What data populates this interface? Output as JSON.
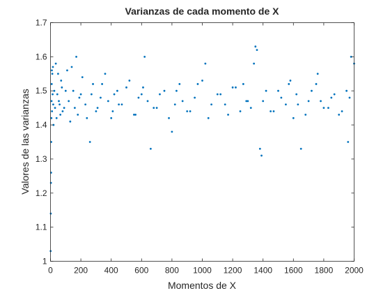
{
  "chart_data": {
    "type": "scatter",
    "title": "Varianzas de cada momento de X",
    "xlabel": "Momentos de X",
    "ylabel": "Valores de las varianzas",
    "xlim": [
      0,
      2000
    ],
    "ylim": [
      1.0,
      1.7
    ],
    "xticks": [
      0,
      200,
      400,
      600,
      800,
      1000,
      1200,
      1400,
      1600,
      1800,
      2000
    ],
    "xtick_labels": [
      "0",
      "200",
      "400",
      "600",
      "800",
      "1000",
      "1200",
      "1400",
      "1600",
      "1800",
      "2000"
    ],
    "yticks": [
      1.0,
      1.1,
      1.2,
      1.3,
      1.4,
      1.5,
      1.6,
      1.7
    ],
    "ytick_labels": [
      "1",
      "1.1",
      "1.2",
      "1.3",
      "1.4",
      "1.5",
      "1.6",
      "1.7"
    ],
    "grid": false,
    "marker_color": "#0072BD",
    "series": [
      {
        "x": [
          1,
          2,
          3,
          4,
          5,
          6,
          7,
          8,
          9,
          10,
          12,
          14,
          16,
          18,
          20,
          25,
          30,
          35,
          40,
          45,
          50,
          60,
          70,
          80,
          100,
          120,
          140,
          160,
          170,
          180,
          200,
          230,
          260,
          280,
          300,
          330,
          360,
          400,
          420,
          450,
          500,
          550,
          600,
          620,
          640,
          660,
          700,
          750,
          800,
          820,
          850,
          900,
          950,
          1000,
          1020,
          1040,
          1100,
          1150,
          1200,
          1250,
          1270,
          1300,
          1340,
          1350,
          1360,
          1380,
          1390,
          1400,
          1450,
          1500,
          1550,
          1580,
          1600,
          1620,
          1650,
          1700,
          1750,
          1760,
          1800,
          1850,
          1900,
          1950,
          1960,
          1980,
          2000,
          55,
          65,
          75,
          90,
          110,
          130,
          150,
          190,
          210,
          240,
          270,
          310,
          340,
          380,
          410,
          440,
          470,
          520,
          560,
          580,
          610,
          680,
          720,
          780,
          830,
          870,
          920,
          970,
          1060,
          1120,
          1170,
          1220,
          1290,
          1320,
          1420,
          1470,
          1520,
          1570,
          1630,
          1680,
          1720,
          1780,
          1830,
          1870,
          1920,
          1970
        ],
        "y": [
          1.03,
          1.14,
          1.23,
          1.26,
          1.35,
          1.42,
          1.47,
          1.52,
          1.56,
          1.44,
          1.55,
          1.49,
          1.57,
          1.46,
          1.4,
          1.5,
          1.45,
          1.58,
          1.42,
          1.49,
          1.55,
          1.46,
          1.53,
          1.44,
          1.5,
          1.47,
          1.57,
          1.45,
          1.6,
          1.43,
          1.49,
          1.46,
          1.35,
          1.52,
          1.44,
          1.48,
          1.55,
          1.42,
          1.49,
          1.46,
          1.51,
          1.43,
          1.49,
          1.6,
          1.47,
          1.33,
          1.45,
          1.5,
          1.38,
          1.46,
          1.52,
          1.44,
          1.48,
          1.53,
          1.58,
          1.42,
          1.49,
          1.46,
          1.51,
          1.44,
          1.52,
          1.47,
          1.58,
          1.63,
          1.62,
          1.33,
          1.31,
          1.47,
          1.44,
          1.5,
          1.46,
          1.53,
          1.42,
          1.49,
          1.33,
          1.47,
          1.52,
          1.55,
          1.45,
          1.48,
          1.43,
          1.5,
          1.35,
          1.6,
          1.58,
          1.47,
          1.43,
          1.51,
          1.45,
          1.56,
          1.41,
          1.5,
          1.48,
          1.54,
          1.42,
          1.49,
          1.45,
          1.52,
          1.47,
          1.44,
          1.5,
          1.46,
          1.53,
          1.43,
          1.48,
          1.51,
          1.45,
          1.49,
          1.42,
          1.5,
          1.47,
          1.44,
          1.52,
          1.46,
          1.49,
          1.43,
          1.51,
          1.47,
          1.45,
          1.5,
          1.44,
          1.48,
          1.52,
          1.46,
          1.43,
          1.5,
          1.47,
          1.45,
          1.49,
          1.44,
          1.48
        ]
      }
    ]
  }
}
